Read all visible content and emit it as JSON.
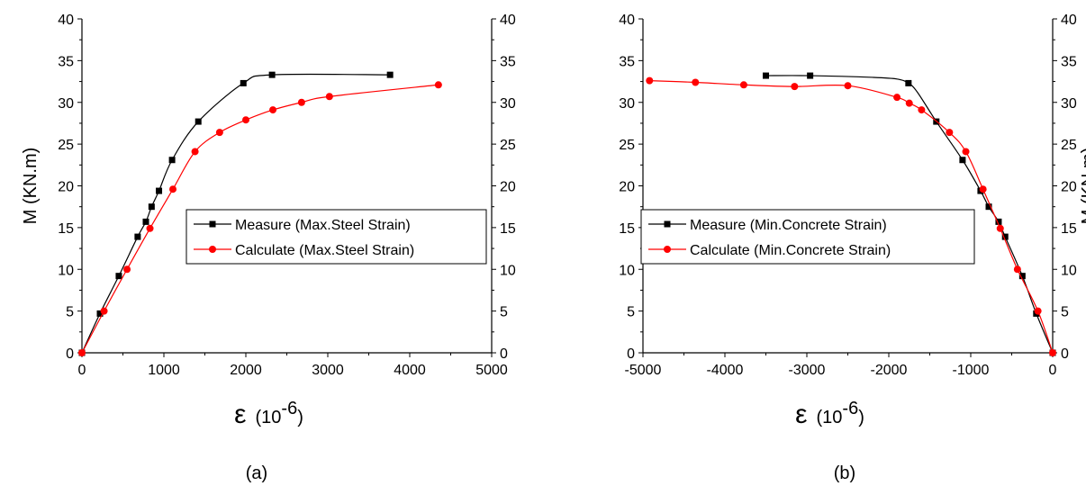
{
  "chart_data": [
    {
      "type": "line",
      "panel_label": "(a)",
      "xlabel": "ε",
      "xlabel_unit": "(10-6)",
      "xlabel_unit_base": "(10",
      "xlabel_unit_exp": "-6",
      "xlabel_unit_close": ")",
      "ylabel": "M (KN.m)",
      "xlim": [
        0,
        5000
      ],
      "ylim": [
        0,
        40
      ],
      "xticks": [
        "0",
        "1000",
        "2000",
        "3000",
        "4000",
        "5000"
      ],
      "yticks": [
        "0",
        "5",
        "10",
        "15",
        "20",
        "25",
        "30",
        "35",
        "40"
      ],
      "grid": false,
      "legend_position": "center",
      "series": [
        {
          "name": "Measure  (Max.Steel Strain)",
          "color": "#000000",
          "marker": "square",
          "x": [
            0,
            220,
            450,
            680,
            780,
            850,
            940,
            1100,
            1420,
            1970,
            2320,
            3760
          ],
          "y": [
            0,
            4.7,
            9.2,
            13.9,
            15.7,
            17.5,
            19.4,
            23.1,
            27.7,
            32.3,
            33.3,
            33.3
          ]
        },
        {
          "name": "Calculate (Max.Steel Strain)",
          "color": "#ff0000",
          "marker": "circle",
          "x": [
            0,
            270,
            550,
            830,
            1110,
            1380,
            1680,
            2000,
            2330,
            2680,
            3020,
            4350
          ],
          "y": [
            0,
            5.0,
            10.0,
            14.9,
            19.6,
            24.1,
            26.4,
            27.9,
            29.1,
            30.0,
            30.7,
            32.1
          ]
        }
      ]
    },
    {
      "type": "line",
      "panel_label": "(b)",
      "xlabel": "ε",
      "xlabel_unit": "(10-6)",
      "xlabel_unit_base": "(10",
      "xlabel_unit_exp": "-6",
      "xlabel_unit_close": ")",
      "ylabel": "M (KN.m)",
      "xlim": [
        -5000,
        0
      ],
      "ylim": [
        0,
        40
      ],
      "xticks": [
        "-5000",
        "-4000",
        "-3000",
        "-2000",
        "-1000",
        "0"
      ],
      "yticks": [
        "0",
        "5",
        "10",
        "15",
        "20",
        "25",
        "30",
        "35",
        "40"
      ],
      "grid": false,
      "legend_position": "center",
      "series": [
        {
          "name": "Measure  (Min.Concrete Strain)",
          "color": "#000000",
          "marker": "square",
          "x": [
            -3500,
            -2960,
            -1760,
            -1420,
            -1100,
            -880,
            -780,
            -660,
            -580,
            -370,
            -200,
            0
          ],
          "y": [
            33.2,
            33.2,
            32.3,
            27.7,
            23.1,
            19.4,
            17.5,
            15.7,
            13.9,
            9.2,
            4.7,
            0
          ],
          "line_x": [
            0,
            -200,
            -370,
            -580,
            -660,
            -780,
            -880,
            -1100,
            -1420,
            -1650,
            -1760,
            -1900,
            -2200,
            -2960,
            -3500
          ],
          "line_y": [
            0,
            4.7,
            9.2,
            13.9,
            15.7,
            17.5,
            19.4,
            23.1,
            27.7,
            31.2,
            32.3,
            32.8,
            33.0,
            33.2,
            33.2
          ]
        },
        {
          "name": "Calculate (Min.Concrete Strain)",
          "color": "#ff0000",
          "marker": "circle",
          "x": [
            -4920,
            -4360,
            -3770,
            -3150,
            -2500,
            -1900,
            -1750,
            -1600,
            -1260,
            -1060,
            -850,
            -640,
            -430,
            -180,
            0
          ],
          "y": [
            32.6,
            32.4,
            32.1,
            31.9,
            32.0,
            30.6,
            29.9,
            29.1,
            26.4,
            24.1,
            19.6,
            14.9,
            10.0,
            5.0,
            0
          ]
        }
      ]
    }
  ]
}
